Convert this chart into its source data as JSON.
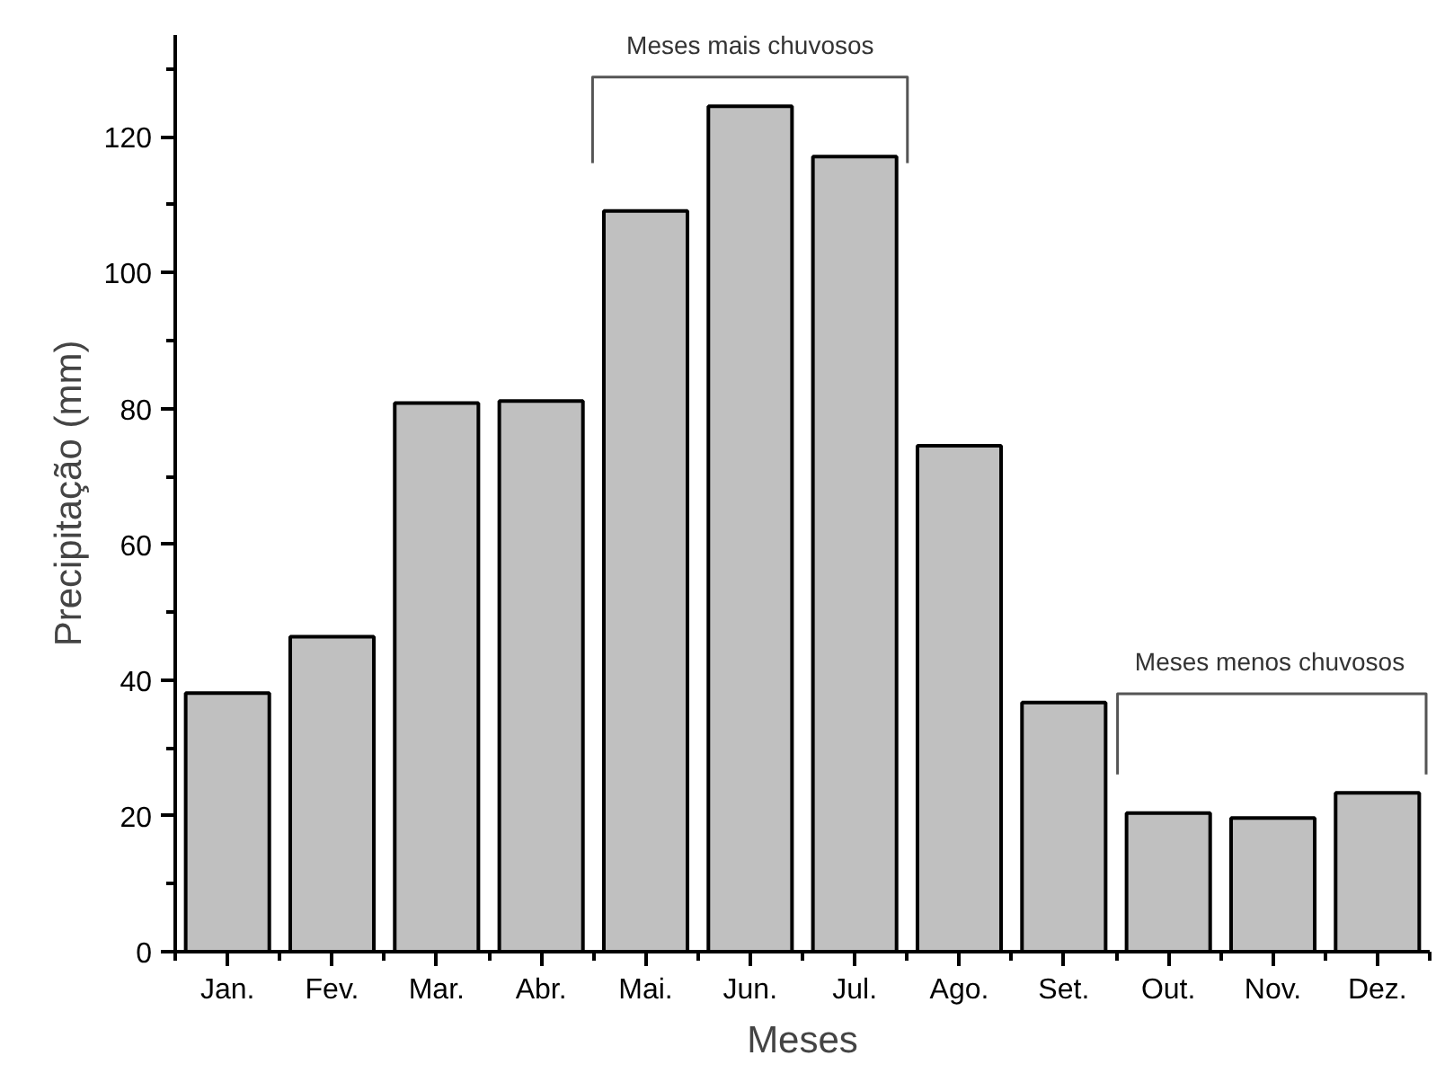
{
  "chart_data": {
    "type": "bar",
    "xlabel": "Meses",
    "ylabel": "Precipitação (mm)",
    "categories": [
      "Jan.",
      "Fev.",
      "Mar.",
      "Abr.",
      "Mai.",
      "Jun.",
      "Jul.",
      "Ago.",
      "Set.",
      "Out.",
      "Nov.",
      "Dez."
    ],
    "values": [
      38.1,
      46.4,
      80.8,
      81.1,
      109.1,
      124.5,
      117.1,
      74.5,
      36.7,
      20.4,
      19.7,
      23.4
    ],
    "color": "#c0c0c0",
    "ylim": [
      0,
      135
    ],
    "yticks": [
      0,
      {
        "value": 10,
        "label": null
      },
      20,
      {
        "value": 30,
        "label": null
      },
      40,
      {
        "value": 50,
        "label": null
      },
      60,
      {
        "value": 70,
        "label": null
      },
      80,
      {
        "value": 90,
        "label": null
      },
      100,
      {
        "value": 110,
        "label": null
      },
      120,
      {
        "value": 130,
        "label": null
      }
    ],
    "annotations": [
      "Meses mais chuvosos",
      "Meses menos chuvosos"
    ],
    "grid": false
  }
}
